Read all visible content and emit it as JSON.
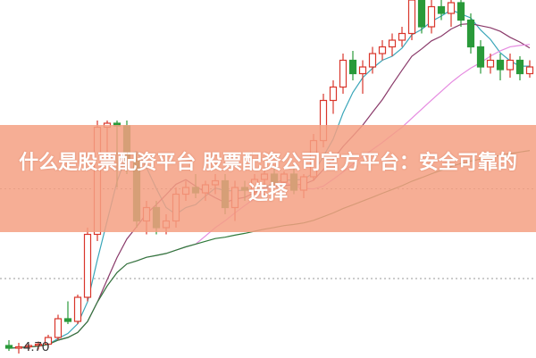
{
  "title": "什么是股票配资平台 股票配资公司官方平台：安全可靠的选择",
  "chart_data": {
    "type": "candlestick",
    "annotations": [
      {
        "text": "4.70",
        "marks": "low price"
      }
    ],
    "reference_lines": [
      5.89,
      5.22
    ],
    "ylim": [
      4.7,
      7.3
    ],
    "colors": {
      "up": "#d9362b",
      "down": "#2a9a3a",
      "ma5": "#3aa6b9",
      "ma10": "#8a3a6a",
      "ma20": "#e58ae0",
      "ma60": "#2f7a3a",
      "banner": "#f4a082"
    },
    "candles_ohlc": [
      [
        4.72,
        4.76,
        4.68,
        4.7
      ],
      [
        4.7,
        4.74,
        4.66,
        4.71
      ],
      [
        4.71,
        4.73,
        4.68,
        4.72
      ],
      [
        4.72,
        4.75,
        4.69,
        4.73
      ],
      [
        4.73,
        4.8,
        4.7,
        4.78
      ],
      [
        4.78,
        4.95,
        4.76,
        4.92
      ],
      [
        4.92,
        5.05,
        4.88,
        4.9
      ],
      [
        4.9,
        5.1,
        4.88,
        5.08
      ],
      [
        5.08,
        5.6,
        5.05,
        5.55
      ],
      [
        5.55,
        6.4,
        5.5,
        6.35
      ],
      [
        6.35,
        6.4,
        6.1,
        6.38
      ],
      [
        6.38,
        6.4,
        5.9,
        6.36
      ],
      [
        6.36,
        6.4,
        6.0,
        6.1
      ],
      [
        6.1,
        6.15,
        5.6,
        5.65
      ],
      [
        5.65,
        5.8,
        5.55,
        5.75
      ],
      [
        5.75,
        5.8,
        5.55,
        5.6
      ],
      [
        5.6,
        5.7,
        5.55,
        5.65
      ],
      [
        5.65,
        5.9,
        5.6,
        5.85
      ],
      [
        5.85,
        5.95,
        5.8,
        5.9
      ],
      [
        5.9,
        6.0,
        5.82,
        5.86
      ],
      [
        5.86,
        5.95,
        5.8,
        5.92
      ],
      [
        5.92,
        6.0,
        5.85,
        5.95
      ],
      [
        5.95,
        6.0,
        5.7,
        5.75
      ],
      [
        5.75,
        5.95,
        5.65,
        5.9
      ],
      [
        5.9,
        5.95,
        5.8,
        5.88
      ],
      [
        5.88,
        6.0,
        5.85,
        5.96
      ],
      [
        5.96,
        6.05,
        5.92,
        6.0
      ],
      [
        6.0,
        6.05,
        5.9,
        5.94
      ],
      [
        5.94,
        6.02,
        5.9,
        6.0
      ],
      [
        6.0,
        6.05,
        5.85,
        5.88
      ],
      [
        5.88,
        6.0,
        5.82,
        5.98
      ],
      [
        5.98,
        6.3,
        5.95,
        6.25
      ],
      [
        6.25,
        6.6,
        6.2,
        6.55
      ],
      [
        6.55,
        6.7,
        6.45,
        6.65
      ],
      [
        6.65,
        6.9,
        6.6,
        6.85
      ],
      [
        6.85,
        6.92,
        6.7,
        6.75
      ],
      [
        6.75,
        6.85,
        6.6,
        6.8
      ],
      [
        6.8,
        6.95,
        6.75,
        6.9
      ],
      [
        6.9,
        7.0,
        6.85,
        6.95
      ],
      [
        6.95,
        7.05,
        6.88,
        7.0
      ],
      [
        7.0,
        7.1,
        6.95,
        7.05
      ],
      [
        7.05,
        7.35,
        7.0,
        7.3
      ],
      [
        7.3,
        7.35,
        7.05,
        7.1
      ],
      [
        7.1,
        7.3,
        7.05,
        7.25
      ],
      [
        7.25,
        7.35,
        7.15,
        7.2
      ],
      [
        7.2,
        7.3,
        7.1,
        7.28
      ],
      [
        7.28,
        7.3,
        7.1,
        7.15
      ],
      [
        7.15,
        7.2,
        6.9,
        6.95
      ],
      [
        6.95,
        7.0,
        6.75,
        6.8
      ],
      [
        6.8,
        6.9,
        6.75,
        6.85
      ],
      [
        6.85,
        6.9,
        6.7,
        6.78
      ],
      [
        6.78,
        6.9,
        6.72,
        6.85
      ],
      [
        6.85,
        6.88,
        6.7,
        6.75
      ],
      [
        6.75,
        6.85,
        6.72,
        6.8
      ]
    ],
    "moving_averages": [
      5,
      10,
      20,
      60
    ]
  }
}
